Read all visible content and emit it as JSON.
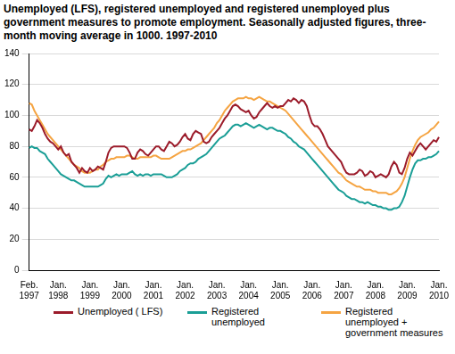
{
  "chart_data": {
    "type": "line",
    "title": "Unemployed (LFS), registered unemployed and registered unemployed plus government measures to promote employment. Seasonally adjusted figures, three-month moving average in 1000. 1997-2010",
    "categories": [
      "Feb. 1997",
      null,
      null,
      null,
      null,
      null,
      null,
      null,
      null,
      null,
      null,
      "Jan. 1998",
      null,
      null,
      null,
      null,
      null,
      null,
      null,
      null,
      null,
      null,
      null,
      "Jan. 1999",
      null,
      null,
      null,
      null,
      null,
      null,
      null,
      null,
      null,
      null,
      null,
      "Jan. 2000",
      null,
      null,
      null,
      null,
      null,
      null,
      null,
      null,
      null,
      null,
      null,
      "Jan. 2001",
      null,
      null,
      null,
      null,
      null,
      null,
      null,
      null,
      null,
      null,
      null,
      "Jan. 2002",
      null,
      null,
      null,
      null,
      null,
      null,
      null,
      null,
      null,
      null,
      null,
      "Jan. 2003",
      null,
      null,
      null,
      null,
      null,
      null,
      null,
      null,
      null,
      null,
      null,
      "Jan. 2004",
      null,
      null,
      null,
      null,
      null,
      null,
      null,
      null,
      null,
      null,
      null,
      "Jan. 2005",
      null,
      null,
      null,
      null,
      null,
      null,
      null,
      null,
      null,
      null,
      null,
      "Jan. 2006",
      null,
      null,
      null,
      null,
      null,
      null,
      null,
      null,
      null,
      null,
      null,
      "Jan. 2007",
      null,
      null,
      null,
      null,
      null,
      null,
      null,
      null,
      null,
      null,
      null,
      "Jan. 2008",
      null,
      null,
      null,
      null,
      null,
      null,
      null,
      null,
      null,
      null,
      null,
      "Jan. 2009",
      null,
      null,
      null,
      null,
      null,
      null,
      null,
      null,
      null,
      null,
      null,
      "Jan. 2010"
    ],
    "series": [
      {
        "name": "Unemployed ( LFS)",
        "color": "#9b1b2a",
        "values": [
          91,
          90,
          93,
          97,
          95,
          92,
          88,
          85,
          83,
          82,
          80,
          78,
          80,
          76,
          74,
          75,
          70,
          68,
          66,
          63,
          66,
          64,
          63,
          66,
          64,
          65,
          67,
          66,
          65,
          70,
          76,
          79,
          80,
          80,
          80,
          80,
          80,
          79,
          76,
          72,
          72,
          76,
          78,
          77,
          75,
          74,
          76,
          78,
          80,
          80,
          78,
          77,
          80,
          83,
          82,
          80,
          81,
          83,
          86,
          88,
          85,
          84,
          88,
          90,
          89,
          88,
          83,
          82,
          83,
          86,
          88,
          90,
          92,
          95,
          98,
          100,
          103,
          106,
          107,
          106,
          104,
          103,
          102,
          103,
          100,
          98,
          99,
          102,
          104,
          106,
          108,
          106,
          105,
          106,
          105,
          106,
          106,
          108,
          110,
          109,
          111,
          110,
          108,
          110,
          109,
          106,
          100,
          95,
          93,
          93,
          91,
          88,
          84,
          80,
          78,
          76,
          74,
          72,
          70,
          66,
          63,
          62,
          62,
          62,
          63,
          65,
          64,
          61,
          62,
          64,
          63,
          60,
          61,
          62,
          61,
          60,
          62,
          67,
          70,
          68,
          63,
          62,
          66,
          72,
          76,
          74,
          77,
          80,
          82,
          80,
          78,
          80,
          82,
          84,
          83,
          86
        ]
      },
      {
        "name": "Registered unemployed",
        "color": "#1a9e96",
        "values": [
          79,
          80,
          79,
          79,
          77,
          76,
          75,
          72,
          70,
          68,
          66,
          64,
          62,
          61,
          60,
          59,
          58,
          58,
          57,
          56,
          55,
          54,
          54,
          54,
          54,
          54,
          54,
          55,
          56,
          59,
          61,
          60,
          61,
          62,
          61,
          62,
          62,
          62,
          63,
          64,
          62,
          61,
          62,
          61,
          62,
          62,
          61,
          62,
          62,
          62,
          62,
          61,
          60,
          60,
          60,
          61,
          62,
          64,
          65,
          66,
          68,
          69,
          69,
          70,
          72,
          73,
          74,
          75,
          77,
          79,
          81,
          83,
          85,
          86,
          87,
          89,
          91,
          93,
          94,
          94,
          93,
          94,
          95,
          94,
          93,
          92,
          93,
          94,
          93,
          92,
          91,
          92,
          92,
          91,
          90,
          90,
          89,
          88,
          86,
          85,
          83,
          82,
          80,
          79,
          78,
          76,
          74,
          72,
          70,
          68,
          66,
          64,
          62,
          60,
          58,
          56,
          54,
          52,
          51,
          50,
          48,
          47,
          46,
          46,
          45,
          44,
          44,
          43,
          44,
          43,
          42,
          42,
          41,
          41,
          40,
          40,
          39,
          39,
          40,
          40,
          41,
          44,
          48,
          54,
          60,
          65,
          69,
          71,
          71,
          72,
          72,
          73,
          73,
          74,
          75,
          77
        ]
      },
      {
        "name": "Registered unemployed + government measures",
        "color": "#f5a442",
        "values": [
          108,
          107,
          103,
          100,
          97,
          94,
          91,
          88,
          86,
          84,
          82,
          80,
          78,
          76,
          74,
          72,
          70,
          68,
          67,
          66,
          64,
          63,
          63,
          63,
          64,
          65,
          65,
          67,
          68,
          70,
          71,
          72,
          72,
          73,
          73,
          73,
          73,
          74,
          74,
          73,
          72,
          72,
          73,
          73,
          73,
          73,
          73,
          74,
          74,
          73,
          72,
          72,
          72,
          72,
          73,
          74,
          75,
          76,
          77,
          77,
          78,
          78,
          79,
          80,
          81,
          82,
          84,
          86,
          88,
          90,
          92,
          95,
          97,
          100,
          103,
          105,
          107,
          109,
          110,
          111,
          111,
          111,
          112,
          111,
          111,
          110,
          111,
          112,
          111,
          110,
          109,
          109,
          108,
          107,
          106,
          105,
          104,
          103,
          101,
          99,
          97,
          95,
          93,
          91,
          89,
          87,
          85,
          83,
          81,
          79,
          77,
          75,
          73,
          71,
          69,
          67,
          65,
          63,
          62,
          60,
          58,
          57,
          56,
          55,
          54,
          54,
          53,
          52,
          52,
          52,
          51,
          51,
          50,
          50,
          50,
          50,
          49,
          49,
          50,
          51,
          53,
          56,
          60,
          66,
          72,
          77,
          81,
          84,
          86,
          87,
          88,
          89,
          91,
          92,
          94,
          96
        ]
      }
    ],
    "ylim": [
      0,
      140
    ],
    "yticks": [
      0,
      20,
      40,
      60,
      80,
      100,
      120,
      140
    ],
    "grid": true,
    "legend": "bottom"
  }
}
